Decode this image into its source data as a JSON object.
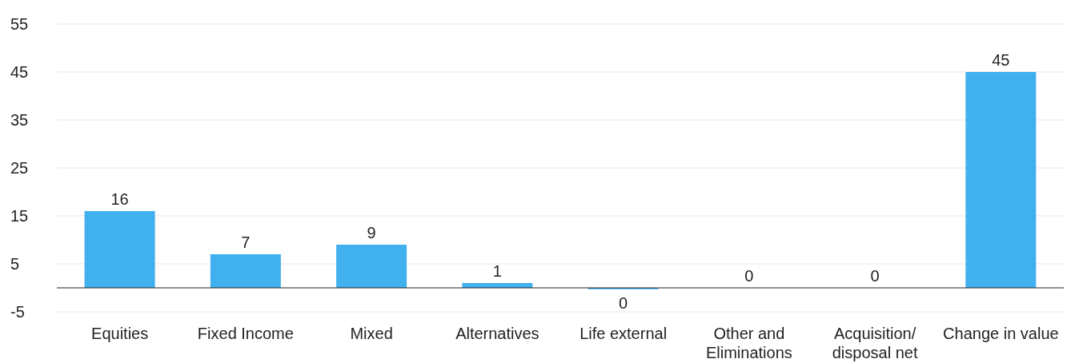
{
  "chart_data": {
    "type": "bar",
    "categories": [
      "Equities",
      "Fixed Income",
      "Mixed",
      "Alternatives",
      "Life external",
      "Other and Eliminations",
      "Acquisition/ disposal net",
      "Change in value"
    ],
    "values": [
      16,
      7,
      9,
      1,
      -0.3,
      0,
      0,
      45
    ],
    "value_labels": [
      "16",
      "7",
      "9",
      "1",
      "0",
      "0",
      "0",
      "45"
    ],
    "color": "#41b0ee",
    "ylim": [
      -5,
      55
    ],
    "yticks": [
      -5,
      5,
      15,
      25,
      35,
      45,
      55
    ],
    "grid": "y",
    "legend": false
  }
}
